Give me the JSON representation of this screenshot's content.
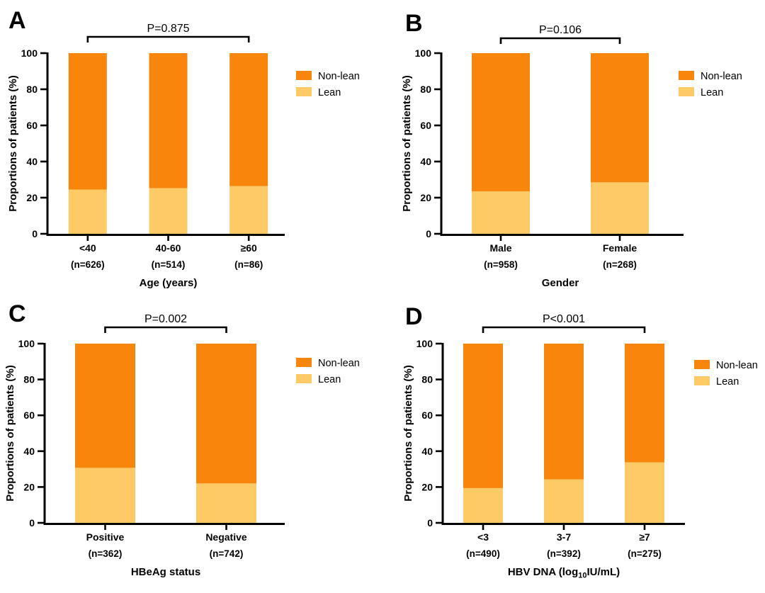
{
  "figure": {
    "background": "#FFFFFF",
    "axis_color": "#000000",
    "ylabel": "Proportions of patients (%)",
    "yticks": [
      "0",
      "20",
      "40",
      "60",
      "80",
      "100"
    ],
    "legend": {
      "position": "right",
      "items": [
        {
          "label": "Non-lean",
          "color": "#F8860D"
        },
        {
          "label": "Lean",
          "color": "#FDCA66"
        }
      ]
    }
  },
  "chart_data": [
    {
      "type": "bar",
      "stacked": true,
      "panel": "A",
      "p_value_label": "P=0.875",
      "xlabel": "Age (years)",
      "ylabel": "Proportions of patients (%)",
      "ylim": [
        0,
        100
      ],
      "grid": false,
      "legend_entries": [
        "Non-lean",
        "Lean"
      ],
      "categories": [
        "<40",
        "40-60",
        "≥60"
      ],
      "counts": [
        "(n=626)",
        "(n=514)",
        "(n=86)"
      ],
      "series": [
        {
          "name": "Non-lean",
          "color": "#F8860D",
          "values": [
            75.5,
            74.7,
            73.6
          ]
        },
        {
          "name": "Lean",
          "color": "#FDCA66",
          "values": [
            24.5,
            25.3,
            26.4
          ]
        }
      ]
    },
    {
      "type": "bar",
      "stacked": true,
      "panel": "B",
      "p_value_label": "P=0.106",
      "xlabel": "Gender",
      "ylabel": "Proportions of patients (%)",
      "ylim": [
        0,
        100
      ],
      "grid": false,
      "legend_entries": [
        "Non-lean",
        "Lean"
      ],
      "categories": [
        "Male",
        "Female"
      ],
      "counts": [
        "(n=958)",
        "(n=268)"
      ],
      "series": [
        {
          "name": "Non-lean",
          "color": "#F8860D",
          "values": [
            76.5,
            71.5
          ]
        },
        {
          "name": "Lean",
          "color": "#FDCA66",
          "values": [
            23.5,
            28.5
          ]
        }
      ]
    },
    {
      "type": "bar",
      "stacked": true,
      "panel": "C",
      "p_value_label": "P=0.002",
      "xlabel": "HBeAg status",
      "ylabel": "Proportions of patients (%)",
      "ylim": [
        0,
        100
      ],
      "grid": false,
      "legend_entries": [
        "Non-lean",
        "Lean"
      ],
      "categories": [
        "Positive",
        "Negative"
      ],
      "counts": [
        "(n=362)",
        "(n=742)"
      ],
      "series": [
        {
          "name": "Non-lean",
          "color": "#F8860D",
          "values": [
            69.3,
            78.0
          ]
        },
        {
          "name": "Lean",
          "color": "#FDCA66",
          "values": [
            30.7,
            22.0
          ]
        }
      ]
    },
    {
      "type": "bar",
      "stacked": true,
      "panel": "D",
      "p_value_label": "P<0.001",
      "xlabel": "HBV DNA (log10IU/mL)",
      "xlabel_parts": [
        {
          "text": "HBV DNA (log",
          "sub": false
        },
        {
          "text": "10",
          "sub": true
        },
        {
          "text": "IU/mL)",
          "sub": false
        }
      ],
      "ylabel": "Proportions of patients (%)",
      "ylim": [
        0,
        100
      ],
      "grid": false,
      "legend_entries": [
        "Non-lean",
        "Lean"
      ],
      "categories": [
        "<3",
        "3-7",
        "≥7"
      ],
      "counts": [
        "(n=490)",
        "(n=392)",
        "(n=275)"
      ],
      "series": [
        {
          "name": "Non-lean",
          "color": "#F8860D",
          "values": [
            80.6,
            75.7,
            66.2
          ]
        },
        {
          "name": "Lean",
          "color": "#FDCA66",
          "values": [
            19.4,
            24.3,
            33.8
          ]
        }
      ]
    }
  ]
}
